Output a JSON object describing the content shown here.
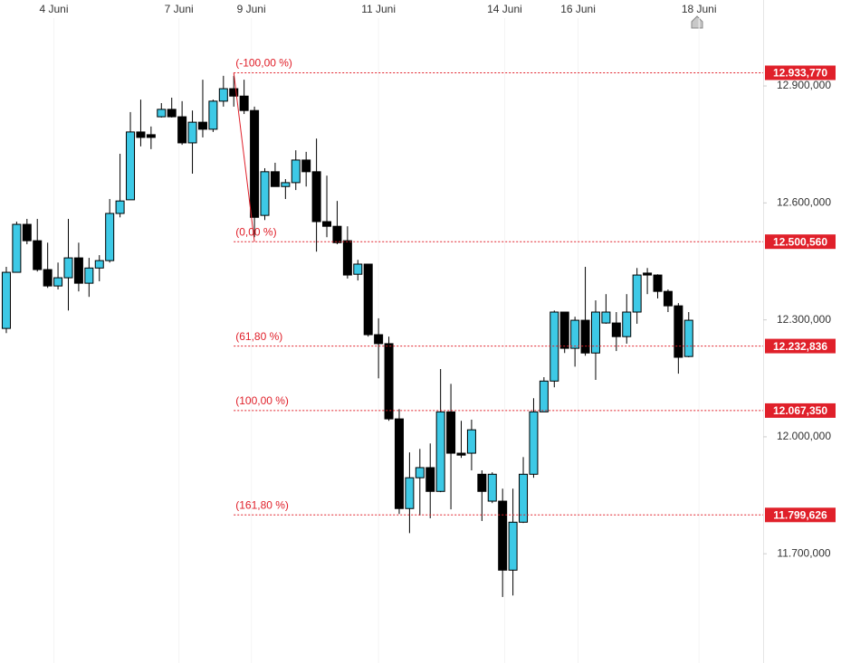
{
  "chart_data": {
    "type": "candlestick",
    "up_color": "#3dc9e6",
    "down_color": "#000000",
    "fib_color": "#e0202a",
    "x": [
      0,
      1,
      2,
      3,
      4,
      5,
      6,
      7,
      8,
      9,
      10,
      11,
      12,
      13,
      14,
      15,
      16,
      17,
      18,
      19,
      20,
      21,
      22,
      23,
      24,
      25,
      26,
      27,
      28,
      29,
      30,
      31,
      32,
      33,
      34,
      35,
      36,
      37,
      38,
      39,
      40,
      41,
      42,
      43,
      44,
      45,
      46,
      47,
      48,
      49,
      50,
      51,
      52,
      53,
      54,
      55,
      56,
      57,
      58,
      59,
      60,
      61,
      62,
      63,
      64,
      65,
      66
    ],
    "open": [
      12278,
      12422,
      12545,
      12503,
      12429,
      12387,
      12408,
      12459,
      12394,
      12433,
      12452,
      12573,
      12608,
      12782,
      12775,
      12821,
      12840,
      12821,
      12754,
      12807,
      12789,
      12861,
      12893,
      12874,
      12837,
      12568,
      12680,
      12642,
      12652,
      12710,
      12680,
      12552,
      12540,
      12503,
      12417,
      12443,
      12262,
      12239,
      12046,
      11816,
      11895,
      11921,
      11860,
      12064,
      11958,
      11958,
      11904,
      11835,
      11835,
      11658,
      11781,
      11904,
      12064,
      12143,
      12320,
      12227,
      12299,
      12215,
      12292,
      12292,
      12257,
      12320,
      12420,
      12415,
      12373,
      12336,
      12206
    ],
    "high": [
      12436,
      12552,
      12559,
      12559,
      12498,
      12447,
      12559,
      12498,
      12459,
      12466,
      12610,
      12726,
      12833,
      12865,
      12796,
      12856,
      12870,
      12861,
      12837,
      12916,
      12865,
      12926,
      12926,
      12916,
      12847,
      12689,
      12703,
      12661,
      12735,
      12731,
      12765,
      12670,
      12605,
      12540,
      12454,
      12443,
      12304,
      12257,
      12071,
      11960,
      11969,
      11983,
      12174,
      12136,
      12041,
      12044,
      11914,
      11909,
      11867,
      11867,
      11948,
      12099,
      12153,
      12324,
      12320,
      12308,
      12436,
      12350,
      12366,
      12320,
      12366,
      12433,
      12433,
      12417,
      12378,
      12343,
      12320
    ],
    "low": [
      12266,
      12422,
      12494,
      12424,
      12382,
      12378,
      12324,
      12373,
      12359,
      12399,
      12447,
      12563,
      12608,
      12745,
      12738,
      12819,
      12819,
      12749,
      12675,
      12768,
      12782,
      12847,
      12847,
      12828,
      12512,
      12556,
      12642,
      12610,
      12633,
      12642,
      12475,
      12512,
      12494,
      12406,
      12401,
      12257,
      12150,
      12041,
      11802,
      11753,
      11798,
      11791,
      11858,
      11814,
      11946,
      11914,
      11784,
      11830,
      11589,
      11593,
      11779,
      11895,
      12064,
      12127,
      12215,
      12180,
      12208,
      12146,
      12290,
      12220,
      12239,
      12290,
      12366,
      12355,
      12320,
      12162,
      12204
    ],
    "close": [
      12422,
      12545,
      12503,
      12429,
      12387,
      12408,
      12459,
      12394,
      12433,
      12452,
      12573,
      12605,
      12782,
      12768,
      12768,
      12840,
      12821,
      12754,
      12807,
      12789,
      12861,
      12893,
      12874,
      12837,
      12563,
      12680,
      12642,
      12652,
      12710,
      12680,
      12552,
      12540,
      12498,
      12415,
      12443,
      12262,
      12239,
      12046,
      11816,
      11895,
      11921,
      11860,
      12064,
      11958,
      11953,
      12018,
      11860,
      11904,
      11658,
      11781,
      11904,
      12064,
      12143,
      12320,
      12227,
      12299,
      12215,
      12320,
      12320,
      12257,
      12320,
      12415,
      12415,
      12373,
      12336,
      12204,
      12299
    ],
    "xlim": [
      -0.61,
      73.2
    ],
    "xticks": [
      {
        "value": 4.6,
        "label": "4 Juni"
      },
      {
        "value": 16.7,
        "label": "7 Juni"
      },
      {
        "value": 23.7,
        "label": "9 Juni"
      },
      {
        "value": 36,
        "label": "11 Juni"
      },
      {
        "value": 48.2,
        "label": "14 Juni"
      },
      {
        "value": 55.3,
        "label": "16 Juni"
      },
      {
        "value": 67,
        "label": "18 Juni"
      }
    ],
    "ylim": [
      11419.8,
      13120.5
    ],
    "yticks": [
      {
        "value": 12900,
        "label": "12.900,000"
      },
      {
        "value": 12600,
        "label": "12.600,000"
      },
      {
        "value": 12300,
        "label": "12.300,000"
      },
      {
        "value": 12000,
        "label": "12.000,000"
      },
      {
        "value": 11700,
        "label": "11.700,000"
      }
    ],
    "fib_start": 22,
    "trendline": {
      "from": [
        22,
        12933.77
      ],
      "to": [
        24,
        12500.56
      ]
    },
    "fib_levels": [
      {
        "label": "(-100,00 %)",
        "value": 12933.77,
        "value_label": "12.933,770"
      },
      {
        "label": "(0,00 %)",
        "value": 12500.56,
        "value_label": "12.500,560"
      },
      {
        "label": "(61,80 %)",
        "value": 12232.836,
        "value_label": "12.232,836"
      },
      {
        "label": "(100,00 %)",
        "value": 12067.35,
        "value_label": "12.067,350"
      },
      {
        "label": "(161,80 %)",
        "value": 11799.626,
        "value_label": "11.799,626"
      }
    ]
  }
}
